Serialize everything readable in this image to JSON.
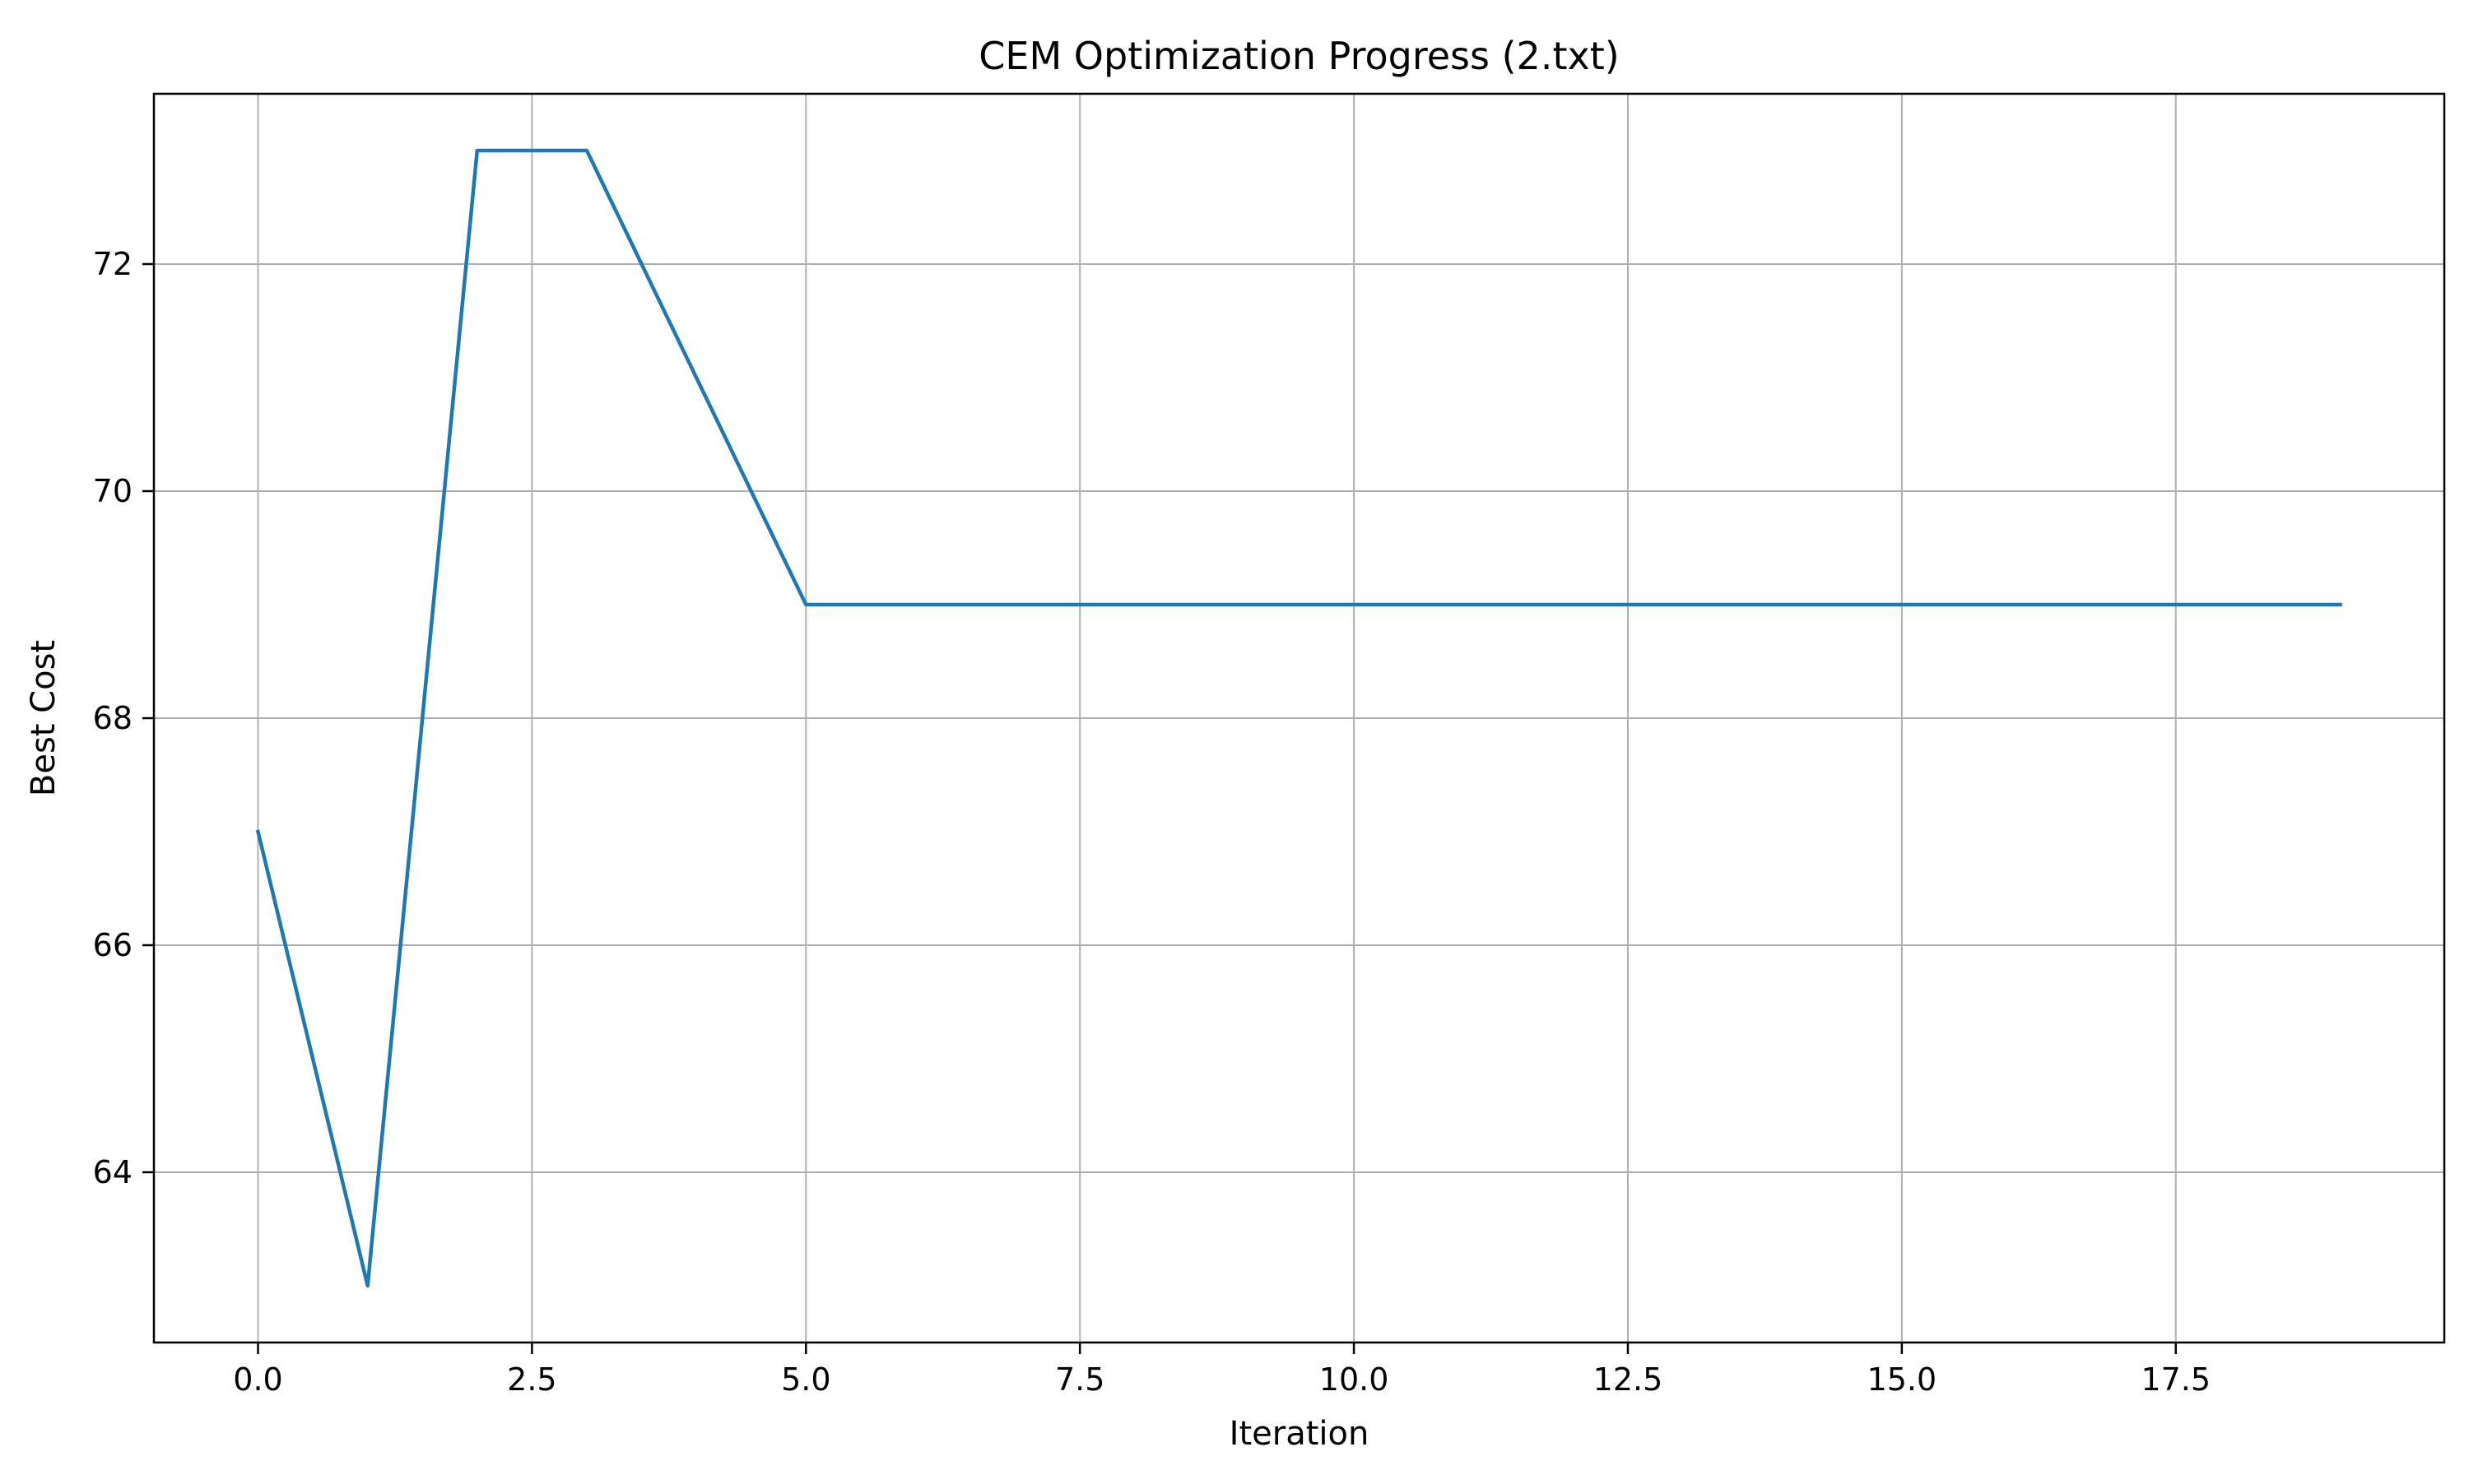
{
  "chart_data": {
    "type": "line",
    "title": "CEM Optimization Progress (2.txt)",
    "xlabel": "Iteration",
    "ylabel": "Best Cost",
    "xlim": [
      -0.95,
      19.95
    ],
    "ylim": [
      62.5,
      73.5
    ],
    "xticks": [
      0.0,
      2.5,
      5.0,
      7.5,
      10.0,
      12.5,
      15.0,
      17.5
    ],
    "xtick_labels": [
      "0.0",
      "2.5",
      "5.0",
      "7.5",
      "10.0",
      "12.5",
      "15.0",
      "17.5"
    ],
    "yticks": [
      64,
      66,
      68,
      70,
      72
    ],
    "ytick_labels": [
      "64",
      "66",
      "68",
      "70",
      "72"
    ],
    "grid": true,
    "legend": "none",
    "series": [
      {
        "color": "#1f77b4",
        "x": [
          0,
          1,
          2,
          3,
          4,
          5,
          6,
          7,
          8,
          9,
          10,
          11,
          12,
          13,
          14,
          15,
          16,
          17,
          18,
          19
        ],
        "y": [
          67,
          63,
          73,
          73,
          71,
          69,
          69,
          69,
          69,
          69,
          69,
          69,
          69,
          69,
          69,
          69,
          69,
          69,
          69,
          69
        ]
      }
    ]
  }
}
